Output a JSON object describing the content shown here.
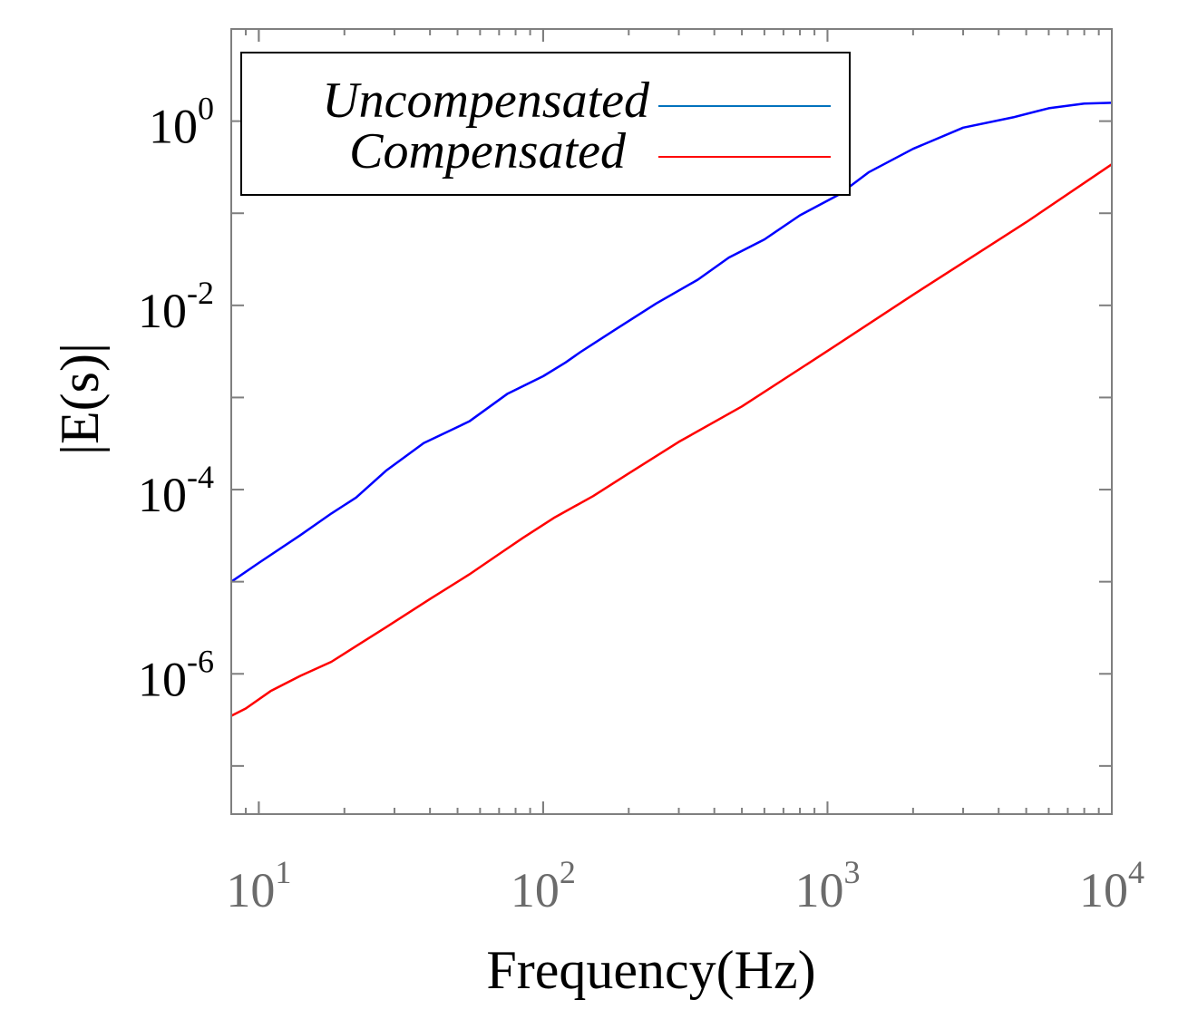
{
  "chart_data": {
    "type": "line",
    "title": "",
    "xlabel": "Frequency(Hz)",
    "ylabel": "|E(s)|",
    "xscale": "log",
    "yscale": "log",
    "xlim": [
      8,
      10000
    ],
    "ylim": [
      3e-08,
      10
    ],
    "xticks": [
      {
        "value": 10,
        "base": "10",
        "exp": "1"
      },
      {
        "value": 100,
        "base": "10",
        "exp": "2"
      },
      {
        "value": 1000,
        "base": "10",
        "exp": "3"
      },
      {
        "value": 10000,
        "base": "10",
        "exp": "4"
      }
    ],
    "yticks": [
      {
        "value": 1,
        "base": "10",
        "exp": "0"
      },
      {
        "value": 0.01,
        "base": "10",
        "exp": "-2"
      },
      {
        "value": 0.0001,
        "base": "10",
        "exp": "-4"
      },
      {
        "value": 1e-06,
        "base": "10",
        "exp": "-6"
      }
    ],
    "legend_position": "top-left",
    "series": [
      {
        "name": "Uncompensated",
        "color": "#0000ff",
        "legend_color": "#0072bd",
        "x": [
          8,
          10,
          14,
          18,
          22,
          28,
          38,
          55,
          75,
          100,
          120,
          135,
          180,
          250,
          350,
          450,
          600,
          800,
          1100,
          1400,
          2000,
          3000,
          4500,
          6000,
          8000,
          10000
        ],
        "y": [
          1e-05,
          1.6e-05,
          3.2e-05,
          5.5e-05,
          8.2e-05,
          0.00016,
          0.00032,
          0.00055,
          0.0011,
          0.0017,
          0.0024,
          0.0031,
          0.0055,
          0.0105,
          0.019,
          0.033,
          0.052,
          0.095,
          0.16,
          0.28,
          0.5,
          0.85,
          1.1,
          1.38,
          1.55,
          1.58
        ]
      },
      {
        "name": "Compensated",
        "color": "#ff0000",
        "legend_color": "#ff0000",
        "x": [
          8,
          9,
          11,
          14,
          18,
          22,
          28,
          40,
          55,
          70,
          85,
          110,
          150,
          200,
          300,
          500,
          1000,
          2000,
          5000,
          10000
        ],
        "y": [
          3.5e-07,
          4.2e-07,
          6.5e-07,
          9.5e-07,
          1.35e-06,
          2e-06,
          3.2e-06,
          6.5e-06,
          1.2e-05,
          2e-05,
          3e-05,
          5e-05,
          8.5e-05,
          0.00015,
          0.00033,
          0.0008,
          0.0032,
          0.013,
          0.08,
          0.34
        ]
      }
    ]
  }
}
